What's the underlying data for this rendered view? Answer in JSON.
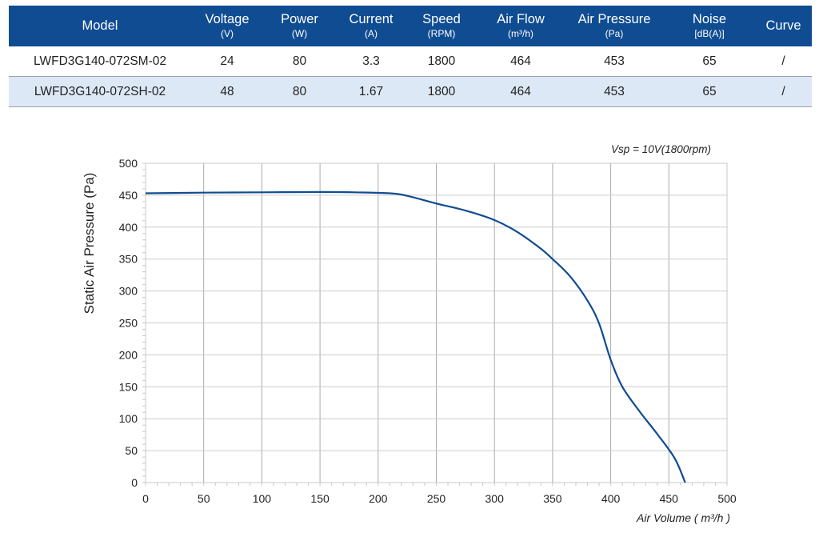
{
  "table": {
    "headers": [
      {
        "label": "Model",
        "unit": ""
      },
      {
        "label": "Voltage",
        "unit": "(V)"
      },
      {
        "label": "Power",
        "unit": "(W)"
      },
      {
        "label": "Current",
        "unit": "(A)"
      },
      {
        "label": "Speed",
        "unit": "(RPM)"
      },
      {
        "label": "Air Flow",
        "unit": "(m³/h)"
      },
      {
        "label": "Air Pressure",
        "unit": "(Pa)"
      },
      {
        "label": "Noise",
        "unit": "[dB(A)]"
      },
      {
        "label": "Curve",
        "unit": ""
      }
    ],
    "rows": [
      [
        "LWFD3G140-072SM-02",
        "24",
        "80",
        "3.3",
        "1800",
        "464",
        "453",
        "65",
        "/"
      ],
      [
        "LWFD3G140-072SH-02",
        "48",
        "80",
        "1.67",
        "1800",
        "464",
        "453",
        "65",
        "/"
      ]
    ]
  },
  "colors": {
    "header_bg": "#0f4c92",
    "row_alt_bg": "#dce8f5",
    "curve": "#0f4c92",
    "grid": "#c8c8c8"
  },
  "chart_data": {
    "type": "line",
    "annotation": "Vsp = 10V(1800rpm)",
    "xlabel": "Air Volume ( m³/h )",
    "ylabel": "Static Air Pressure  (Pa)",
    "xlim": [
      0,
      500
    ],
    "ylim": [
      0,
      500
    ],
    "xticks": [
      0,
      50,
      100,
      150,
      200,
      250,
      300,
      350,
      400,
      450,
      500
    ],
    "yticks": [
      0,
      50,
      100,
      150,
      200,
      250,
      300,
      350,
      400,
      450,
      500
    ],
    "grid": true,
    "series": [
      {
        "x": [
          0,
          50,
          100,
          150,
          180,
          210,
          225,
          250,
          275,
          300,
          320,
          340,
          350,
          365,
          380,
          390,
          400,
          410,
          425,
          440,
          455,
          464
        ],
        "y": [
          453,
          454,
          454.5,
          455,
          454.5,
          453,
          449,
          437,
          426,
          411,
          392,
          366,
          350,
          323,
          285,
          249,
          192,
          150,
          111,
          76,
          38,
          0
        ]
      }
    ]
  }
}
